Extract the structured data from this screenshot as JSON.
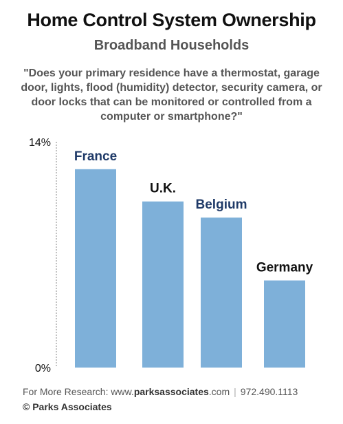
{
  "header": {
    "title": "Home Control System Ownership",
    "subtitle": "Broadband Households",
    "question": "\"Does your primary residence have a thermostat, garage door, lights, flood (humidity) detector, security camera, or door locks that can be monitored or controlled from a computer or smartphone?\""
  },
  "footer": {
    "prefix": "For More Research: www.",
    "site_bold": "parksassociates",
    "site_suffix": ".com",
    "separator": "|",
    "phone": "972.490.1113",
    "copyright": "© Parks Associates"
  },
  "colors": {
    "bar": "#7eb0d9",
    "label_dark_blue": "#1f3a68",
    "label_black": "#111111",
    "axis": "#999999"
  },
  "chart_data": {
    "type": "bar",
    "categories": [
      "France",
      "U.K.",
      "Belgium",
      "Germany"
    ],
    "values": [
      12.3,
      10.3,
      9.3,
      5.4
    ],
    "label_colors": [
      "dark_blue",
      "black",
      "dark_blue",
      "black"
    ],
    "ylim": [
      0,
      14
    ],
    "y_ticks": [
      "0%",
      "14%"
    ],
    "title": "Home Control System Ownership",
    "subtitle": "Broadband Households",
    "xlabel": "",
    "ylabel": "",
    "grid": false
  }
}
